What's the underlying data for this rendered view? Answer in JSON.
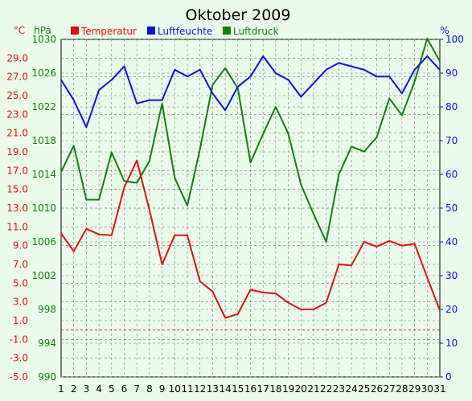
{
  "chart_data": {
    "type": "line",
    "title": "Oktober 2009",
    "x": [
      "1",
      "2",
      "3",
      "4",
      "5",
      "6",
      "7",
      "8",
      "9",
      "10",
      "11",
      "12",
      "13",
      "14",
      "15",
      "16",
      "17",
      "18",
      "19",
      "20",
      "21",
      "22",
      "23",
      "24",
      "25",
      "26",
      "27",
      "28",
      "29",
      "30",
      "31"
    ],
    "axes": {
      "temperature": {
        "unit": "°C",
        "ylim": [
          -5.0,
          31.0
        ],
        "ticks": [
          "-5.0",
          "-3.0",
          "-1.0",
          "1.0",
          "3.0",
          "5.0",
          "7.0",
          "9.0",
          "11.0",
          "13.0",
          "15.0",
          "17.0",
          "19.0",
          "21.0",
          "23.0",
          "25.0",
          "27.0",
          "29.0"
        ]
      },
      "pressure": {
        "unit": "hPa",
        "ylim": [
          990,
          1030
        ],
        "ticks": [
          "990",
          "994",
          "998",
          "1002",
          "1006",
          "1010",
          "1014",
          "1018",
          "1022",
          "1026",
          "1030"
        ]
      },
      "humidity": {
        "unit": "%",
        "ylim": [
          0,
          100
        ],
        "ticks": [
          "0",
          "10",
          "20",
          "30",
          "40",
          "50",
          "60",
          "70",
          "80",
          "90",
          "100"
        ]
      }
    },
    "series": [
      {
        "name": "Temperatur",
        "axis": "temperature",
        "color": "#e01010",
        "values": [
          10.3,
          8.4,
          10.8,
          10.2,
          10.1,
          15.2,
          18.1,
          12.8,
          7.0,
          10.1,
          10.1,
          5.2,
          4.1,
          1.3,
          1.7,
          4.3,
          4.0,
          3.9,
          2.9,
          2.2,
          2.2,
          2.9,
          7.0,
          6.9,
          9.4,
          8.9,
          9.5,
          9.0,
          9.2,
          5.6,
          2.1
        ]
      },
      {
        "name": "Luftfeuchte",
        "axis": "humidity",
        "color": "#1010e0",
        "values": [
          88,
          82,
          74,
          85,
          88,
          92,
          81,
          82,
          82,
          91,
          89,
          91,
          84,
          79,
          86,
          89,
          95,
          90,
          88,
          83,
          87,
          91,
          93,
          92,
          91,
          89,
          89,
          84,
          91,
          95,
          91
        ]
      },
      {
        "name": "Luftdruck",
        "axis": "pressure",
        "color": "#108010",
        "values": [
          1014.3,
          1017.4,
          1011.0,
          1011.0,
          1016.6,
          1013.2,
          1013.0,
          1015.6,
          1022.4,
          1013.6,
          1010.3,
          1017.0,
          1024.6,
          1026.6,
          1024.2,
          1015.4,
          1018.8,
          1022.0,
          1018.8,
          1012.8,
          1009.3,
          1006.0,
          1014.0,
          1017.3,
          1016.7,
          1018.4,
          1023.0,
          1021.0,
          1025.0,
          1030.1,
          1027.4
        ]
      }
    ],
    "legend_placement": "top",
    "grid": true,
    "zero_line": {
      "axis": "temperature",
      "value": 0.0,
      "color": "#e01010"
    }
  }
}
